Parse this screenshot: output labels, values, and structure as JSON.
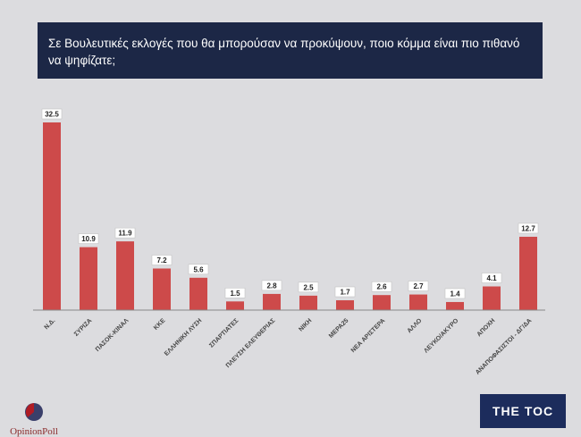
{
  "title": "Σε Βουλευτικές εκλογές που θα μπορούσαν να προκύψουν, ποιο κόμμα είναι πιο πιθανό να ψηφίζατε;",
  "chart_data": {
    "type": "bar",
    "title": "Σε Βουλευτικές εκλογές που θα μπορούσαν να προκύψουν, ποιο κόμμα είναι πιο πιθανό να ψηφίζατε;",
    "categories": [
      "Ν.Δ.",
      "ΣΥΡΙΖΑ",
      "ΠΑΣΟΚ-ΚΙΝΑΛ",
      "ΚΚΕ",
      "ΕΛΛΗΝΙΚΗ ΛΥΣΗ",
      "ΣΠΑΡΤΙΑΤΕΣ",
      "ΠΛΕΥΣΗ ΕΛΕΥΘΕΡΙΑΣ",
      "ΝΙΚΗ",
      "ΜΕΡΑ25",
      "ΝΕΑ ΑΡΙΣΤΕΡΑ",
      "ΑΛΛΟ",
      "ΛΕΥΚΟ/ΑΚΥΡΟ",
      "ΑΠΟΧΗ",
      "ΑΝΑΠΟΦΑΣΙΣΤΟΙ - ΔΓ/ΔΑ"
    ],
    "values": [
      32.5,
      10.9,
      11.9,
      7.2,
      5.6,
      1.5,
      2.8,
      2.5,
      1.7,
      2.6,
      2.7,
      1.4,
      4.1,
      12.7
    ],
    "xlabel": "",
    "ylabel": "",
    "ylim": [
      0,
      32.5
    ],
    "grid": false,
    "bar_color": "#cd4a4a"
  },
  "logos": {
    "left": "OpinionPoll",
    "right": "THE TOC"
  },
  "colors": {
    "title_bg": "#1c2746",
    "background": "#dcdcdf"
  }
}
